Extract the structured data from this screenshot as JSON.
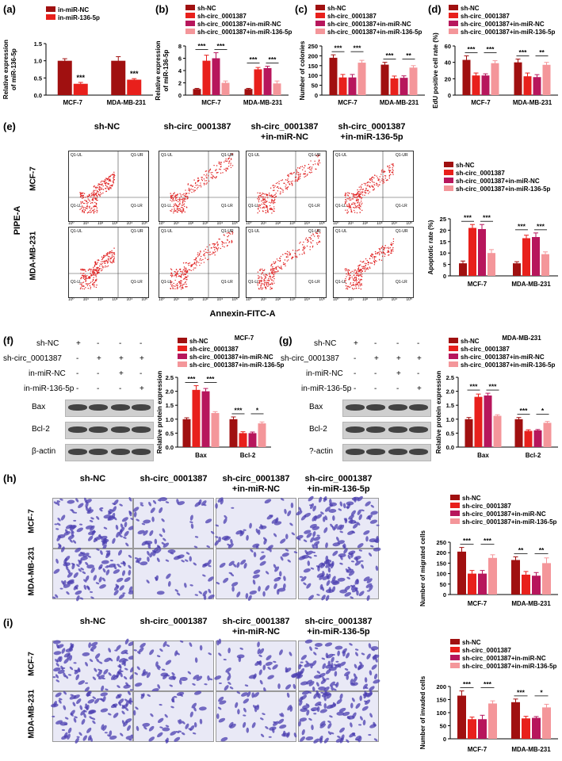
{
  "colors": {
    "sh_nc": "#a01010",
    "sh_circ": "#e8201c",
    "sh_circ_nc": "#b7165c",
    "sh_circ_136": "#f4969a",
    "in_nc": "#a01010",
    "in_136": "#e8201c"
  },
  "legend4": [
    "sh-NC",
    "sh-circ_0001387",
    "sh-circ_0001387+in-miR-NC",
    "sh-circ_0001387+in-miR-136-5p"
  ],
  "panel_letters": {
    "a": "(a)",
    "b": "(b)",
    "c": "(c)",
    "d": "(d)",
    "e": "(e)",
    "f": "(f)",
    "g": "(g)",
    "h": "(h)",
    "i": "(i)"
  },
  "group_labels": {
    "e": [
      "sh-NC",
      "sh-circ_0001387",
      "sh-circ_0001387\n+in-miR-NC",
      "sh-circ_0001387\n+in-miR-136-5p"
    ],
    "h": [
      "sh-NC",
      "sh-circ_0001387",
      "sh-circ_0001387\n+in-miR-NC",
      "sh-circ_0001387\n+in-miR-136-5p"
    ]
  },
  "row_labels": {
    "mcf7": "MCF-7",
    "mda": "MDA-MB-231"
  },
  "flow": {
    "y_axis": "PIPE-A",
    "x_axis": "Annexin-FITC-A",
    "quadrants": [
      "Q1-UL",
      "Q1-UR",
      "Q1-LL",
      "Q1-LR"
    ],
    "ticks": [
      "10⁰",
      "10¹",
      "10²",
      "10³",
      "10⁴",
      "10⁵"
    ]
  },
  "wb": {
    "f": {
      "rows": [
        {
          "label": "sh-NC",
          "marks": [
            "+",
            "-",
            "-",
            "-"
          ]
        },
        {
          "label": "sh-circ_0001387",
          "marks": [
            "-",
            "+",
            "+",
            "+"
          ]
        },
        {
          "label": "in-miR-NC",
          "marks": [
            "-",
            "-",
            "+",
            "-"
          ]
        },
        {
          "label": "in-miR-136-5p",
          "marks": [
            "-",
            "-",
            "-",
            "+"
          ]
        }
      ],
      "proteins": [
        "Bax",
        "Bcl-2",
        "β-actin"
      ]
    },
    "g": {
      "rows": [
        {
          "label": "sh-NC",
          "marks": [
            "+",
            "-",
            "-",
            "-"
          ]
        },
        {
          "label": "sh-circ_0001387",
          "marks": [
            "-",
            "+",
            "+",
            "+"
          ]
        },
        {
          "label": "in-miR-NC",
          "marks": [
            "-",
            "-",
            "+",
            "-"
          ]
        },
        {
          "label": "in-miR-136-5p",
          "marks": [
            "-",
            "-",
            "-",
            "+"
          ]
        }
      ],
      "proteins": [
        "Bax",
        "Bcl-2",
        "?-actin"
      ]
    }
  },
  "chart_data": [
    {
      "id": "a",
      "type": "bar",
      "legend": [
        "in-miR-NC",
        "in-miR-136-5p"
      ],
      "categories": [
        "MCF-7",
        "MDA-MB-231"
      ],
      "series": [
        {
          "name": "in-miR-NC",
          "values": [
            1.0,
            1.0
          ],
          "errors": [
            0.06,
            0.12
          ]
        },
        {
          "name": "in-miR-136-5p",
          "values": [
            0.33,
            0.45
          ],
          "errors": [
            0.04,
            0.03
          ]
        }
      ],
      "ylabel": "Relative expression\nof miR-136-5p",
      "ylim": [
        0,
        1.5
      ],
      "yticks": [
        "0.0",
        "0.5",
        "1.0",
        "1.5"
      ],
      "annotations": [
        {
          "category": "MCF-7",
          "text": "***"
        },
        {
          "category": "MDA-MB-231",
          "text": "***"
        }
      ]
    },
    {
      "id": "b",
      "type": "bar",
      "categories": [
        "MCF-7",
        "MDA-MB-231"
      ],
      "series": [
        {
          "name": "sh-NC",
          "values": [
            1.0,
            1.0
          ],
          "errors": [
            0.1,
            0.1
          ]
        },
        {
          "name": "sh-circ_0001387",
          "values": [
            5.6,
            4.2
          ],
          "errors": [
            0.9,
            0.3
          ]
        },
        {
          "name": "sh-circ_0001387+in-miR-NC",
          "values": [
            6.0,
            4.4
          ],
          "errors": [
            0.9,
            0.3
          ]
        },
        {
          "name": "sh-circ_0001387+in-miR-136-5p",
          "values": [
            2.0,
            1.9
          ],
          "errors": [
            0.3,
            0.4
          ]
        }
      ],
      "ylabel": "Relative expression\nof miR-136-5p",
      "ylim": [
        0,
        8
      ],
      "yticks": [
        "0",
        "2",
        "4",
        "6",
        "8"
      ],
      "annotations": [
        "***",
        "***",
        "***",
        "***"
      ]
    },
    {
      "id": "c",
      "type": "bar",
      "categories": [
        "MCF-7",
        "MDA-MB-231"
      ],
      "series": [
        {
          "name": "sh-NC",
          "values": [
            190,
            155
          ],
          "errors": [
            15,
            12
          ]
        },
        {
          "name": "sh-circ_0001387",
          "values": [
            90,
            85
          ],
          "errors": [
            15,
            12
          ]
        },
        {
          "name": "sh-circ_0001387+in-miR-NC",
          "values": [
            90,
            88
          ],
          "errors": [
            15,
            10
          ]
        },
        {
          "name": "sh-circ_0001387+in-miR-136-5p",
          "values": [
            165,
            140
          ],
          "errors": [
            12,
            10
          ]
        }
      ],
      "ylabel": "Number of colonies",
      "ylim": [
        0,
        250
      ],
      "yticks": [
        "0",
        "50",
        "100",
        "150",
        "200",
        "250"
      ],
      "annotations": [
        "***",
        "***",
        "***",
        "**"
      ]
    },
    {
      "id": "d",
      "type": "bar",
      "categories": [
        "MCF-7",
        "MDA-MB-231"
      ],
      "series": [
        {
          "name": "sh-NC",
          "values": [
            43,
            40
          ],
          "errors": [
            5,
            4
          ]
        },
        {
          "name": "sh-circ_0001387",
          "values": [
            24,
            23
          ],
          "errors": [
            3,
            4
          ]
        },
        {
          "name": "sh-circ_0001387+in-miR-NC",
          "values": [
            24,
            22
          ],
          "errors": [
            2,
            3
          ]
        },
        {
          "name": "sh-circ_0001387+in-miR-136-5p",
          "values": [
            39,
            37
          ],
          "errors": [
            3,
            3
          ]
        }
      ],
      "ylabel": "EdU positive cell rate (%)",
      "ylim": [
        0,
        60
      ],
      "yticks": [
        "0",
        "20",
        "40",
        "60"
      ],
      "annotations": [
        "***",
        "***",
        "***",
        "**"
      ]
    },
    {
      "id": "e",
      "type": "bar",
      "categories": [
        "MCF-7",
        "MDA-MB-231"
      ],
      "series": [
        {
          "name": "sh-NC",
          "values": [
            5.5,
            5.5
          ],
          "errors": [
            1,
            0.7
          ]
        },
        {
          "name": "sh-circ_0001387",
          "values": [
            21,
            16.5
          ],
          "errors": [
            1.5,
            1.3
          ]
        },
        {
          "name": "sh-circ_0001387+in-miR-NC",
          "values": [
            20.5,
            17
          ],
          "errors": [
            2,
            1.8
          ]
        },
        {
          "name": "sh-circ_0001387+in-miR-136-5p",
          "values": [
            10,
            9.5
          ],
          "errors": [
            1.5,
            1
          ]
        }
      ],
      "ylabel": "Apoptotic rate (%)",
      "ylim": [
        0,
        25
      ],
      "yticks": [
        "0",
        "5",
        "10",
        "15",
        "20",
        "25"
      ],
      "annotations": [
        "***",
        "***",
        "***",
        "***"
      ]
    },
    {
      "id": "f",
      "type": "bar",
      "title": "MCF-7",
      "categories": [
        "Bax",
        "Bcl-2"
      ],
      "series": [
        {
          "name": "sh-NC",
          "values": [
            1.0,
            1.0
          ],
          "errors": [
            0.05,
            0.08
          ]
        },
        {
          "name": "sh-circ_0001387",
          "values": [
            2.05,
            0.5
          ],
          "errors": [
            0.15,
            0.05
          ]
        },
        {
          "name": "sh-circ_0001387+in-miR-NC",
          "values": [
            2.0,
            0.5
          ],
          "errors": [
            0.1,
            0.04
          ]
        },
        {
          "name": "sh-circ_0001387+in-miR-136-5p",
          "values": [
            1.22,
            0.85
          ],
          "errors": [
            0.05,
            0.05
          ]
        }
      ],
      "ylabel": "Relative protein expression",
      "ylim": [
        0,
        2.5
      ],
      "yticks": [
        "0.0",
        "0.5",
        "1.0",
        "1.5",
        "2.0",
        "2.5"
      ],
      "annotations": [
        "***",
        "***",
        "***",
        "*"
      ]
    },
    {
      "id": "g",
      "type": "bar",
      "title": "MDA-MB-231",
      "categories": [
        "Bax",
        "Bcl-2"
      ],
      "series": [
        {
          "name": "sh-NC",
          "values": [
            1.0,
            1.0
          ],
          "errors": [
            0.06,
            0.06
          ]
        },
        {
          "name": "sh-circ_0001387",
          "values": [
            1.8,
            0.58
          ],
          "errors": [
            0.1,
            0.04
          ]
        },
        {
          "name": "sh-circ_0001387+in-miR-NC",
          "values": [
            1.85,
            0.6
          ],
          "errors": [
            0.08,
            0.03
          ]
        },
        {
          "name": "sh-circ_0001387+in-miR-136-5p",
          "values": [
            1.12,
            0.87
          ],
          "errors": [
            0.04,
            0.05
          ]
        }
      ],
      "ylabel": "Relative protein expression",
      "ylim": [
        0,
        2.5
      ],
      "yticks": [
        "0.0",
        "0.5",
        "1.0",
        "1.5",
        "2.0",
        "2.5"
      ],
      "annotations": [
        "***",
        "***",
        "***",
        "*"
      ]
    },
    {
      "id": "h",
      "type": "bar",
      "categories": [
        "MCF-7",
        "MDA-MB-231"
      ],
      "series": [
        {
          "name": "sh-NC",
          "values": [
            205,
            165
          ],
          "errors": [
            20,
            15
          ]
        },
        {
          "name": "sh-circ_0001387",
          "values": [
            100,
            95
          ],
          "errors": [
            15,
            15
          ]
        },
        {
          "name": "sh-circ_0001387+in-miR-NC",
          "values": [
            100,
            90
          ],
          "errors": [
            15,
            15
          ]
        },
        {
          "name": "sh-circ_0001387+in-miR-136-5p",
          "values": [
            175,
            150
          ],
          "errors": [
            15,
            25
          ]
        }
      ],
      "ylabel": "Number of migrated cells",
      "ylim": [
        0,
        250
      ],
      "yticks": [
        "0",
        "50",
        "100",
        "150",
        "200",
        "250"
      ],
      "annotations": [
        "***",
        "***",
        "**",
        "**"
      ]
    },
    {
      "id": "i",
      "type": "bar",
      "categories": [
        "MCF-7",
        "MDA-MB-231"
      ],
      "series": [
        {
          "name": "sh-NC",
          "values": [
            165,
            140
          ],
          "errors": [
            18,
            12
          ]
        },
        {
          "name": "sh-circ_0001387",
          "values": [
            75,
            78
          ],
          "errors": [
            8,
            8
          ]
        },
        {
          "name": "sh-circ_0001387+in-miR-NC",
          "values": [
            75,
            80
          ],
          "errors": [
            15,
            5
          ]
        },
        {
          "name": "sh-circ_0001387+in-miR-136-5p",
          "values": [
            135,
            120
          ],
          "errors": [
            10,
            12
          ]
        }
      ],
      "ylabel": "Number of invaded cells",
      "ylim": [
        0,
        200
      ],
      "yticks": [
        "0",
        "50",
        "100",
        "150",
        "200"
      ],
      "annotations": [
        "***",
        "***",
        "***",
        "*"
      ]
    }
  ]
}
